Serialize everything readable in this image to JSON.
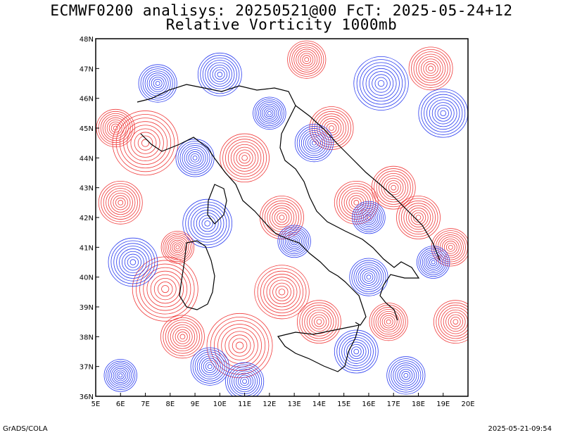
{
  "title_line1": "ECMWF0200 analisys: 20250521@00 FcT: 2025-05-24+12",
  "title_line2": "Relative Vorticity 1000mb",
  "footer_left": "GrADS/COLA",
  "footer_right": "2025-05-21-09:54",
  "map": {
    "lon_range": [
      5,
      20
    ],
    "lat_range": [
      36,
      48
    ],
    "lon_ticks": [
      "5E",
      "6E",
      "7E",
      "8E",
      "9E",
      "10E",
      "11E",
      "12E",
      "13E",
      "14E",
      "15E",
      "16E",
      "17E",
      "18E",
      "19E",
      "20E"
    ],
    "lat_ticks": [
      "36N",
      "37N",
      "38N",
      "39N",
      "40N",
      "41N",
      "42N",
      "43N",
      "44N",
      "45N",
      "46N",
      "47N",
      "48N"
    ],
    "colors": {
      "positive_vorticity": "#f03a3a",
      "negative_vorticity": "#2a3cf0",
      "coastline": "#000000",
      "borders": "#000000"
    }
  }
}
